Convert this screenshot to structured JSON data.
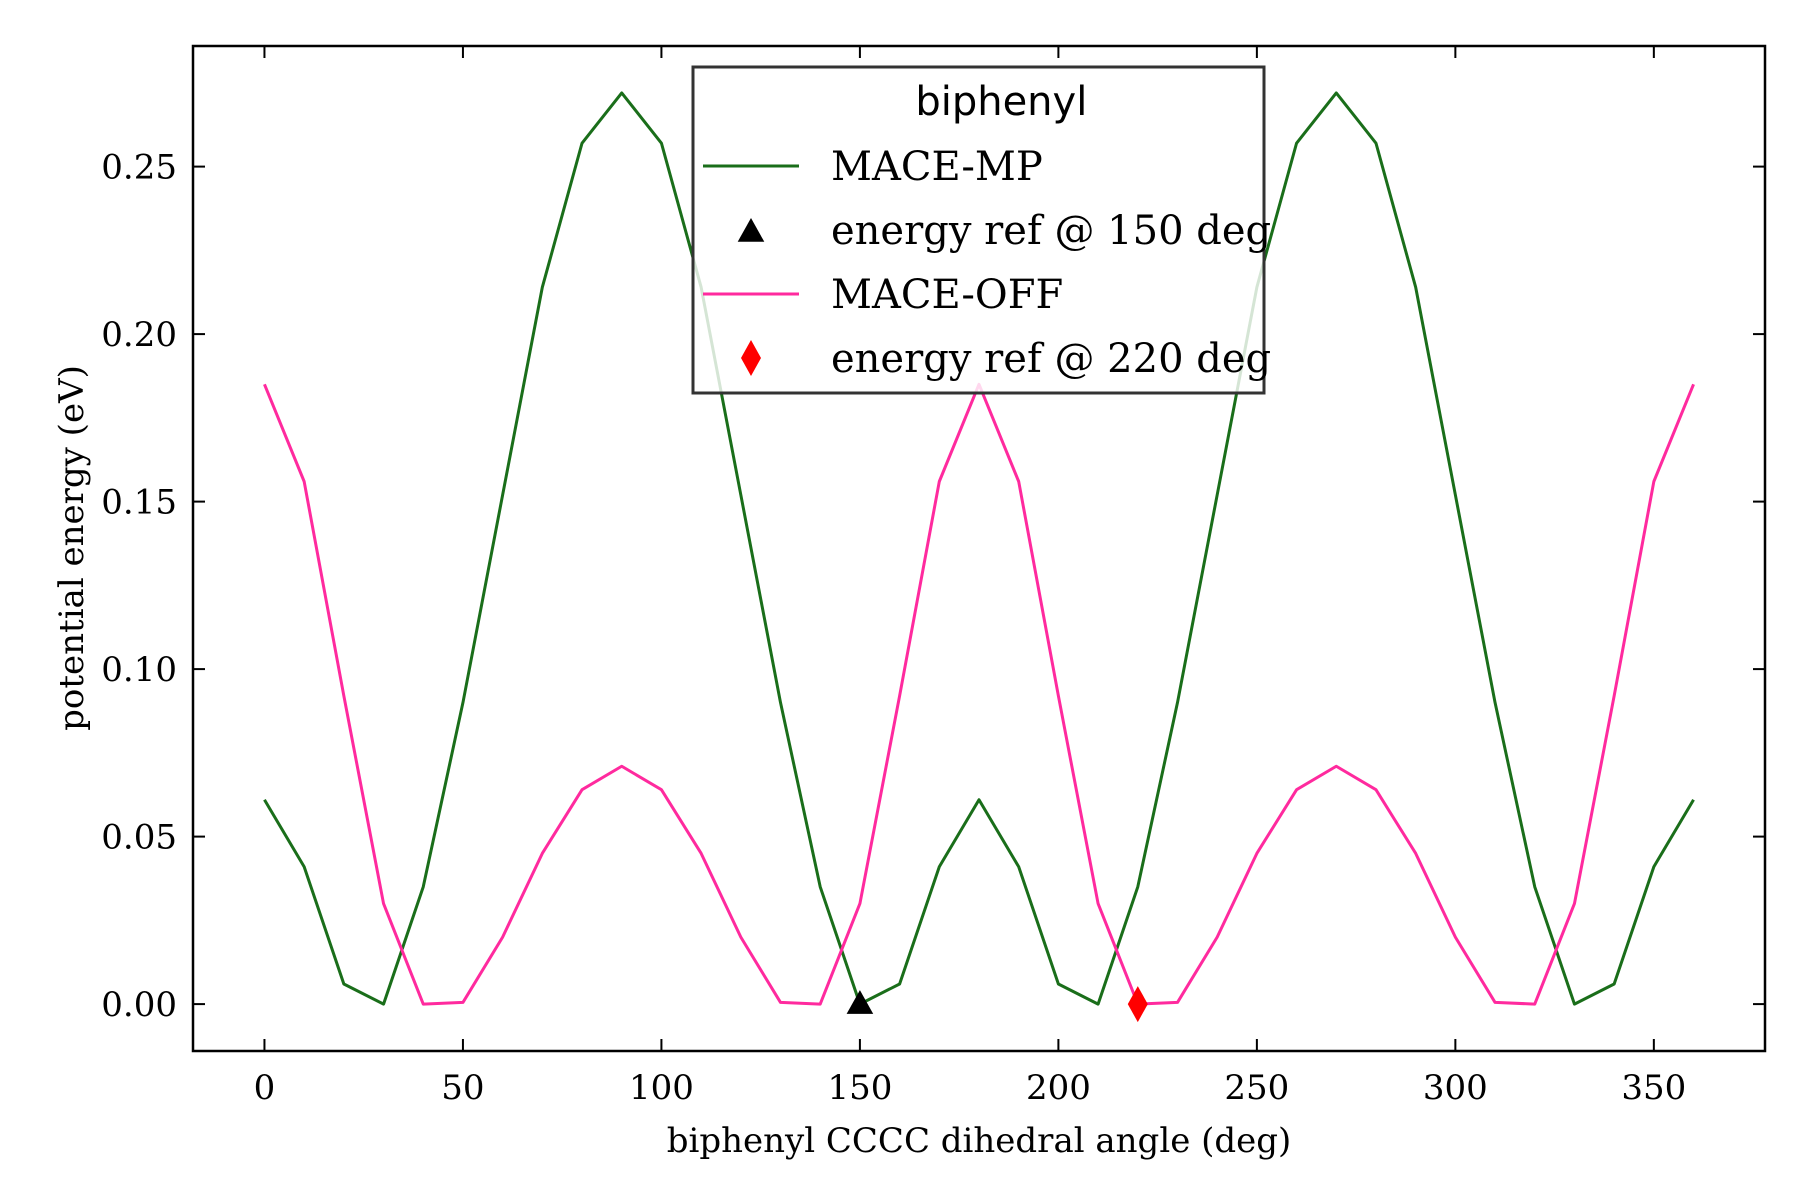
{
  "chart_data": {
    "type": "line",
    "xlabel": "biphenyl CCCC dihedral angle (deg)",
    "ylabel": "potential energy (eV)",
    "xlim": [
      -18,
      378
    ],
    "ylim": [
      -0.014,
      0.286
    ],
    "xticks": [
      0,
      50,
      100,
      150,
      200,
      250,
      300,
      350
    ],
    "yticks": [
      0.0,
      0.05,
      0.1,
      0.15,
      0.2,
      0.25
    ],
    "xtick_labels": [
      "0",
      "50",
      "100",
      "150",
      "200",
      "250",
      "300",
      "350"
    ],
    "ytick_labels": [
      "0.00",
      "0.05",
      "0.10",
      "0.15",
      "0.20",
      "0.25"
    ],
    "grid": false,
    "legend": {
      "title": "biphenyl",
      "placement": "top-center"
    },
    "x": [
      0,
      10,
      20,
      30,
      40,
      50,
      60,
      70,
      80,
      90,
      100,
      110,
      120,
      130,
      140,
      150,
      160,
      170,
      180,
      190,
      200,
      210,
      220,
      230,
      240,
      250,
      260,
      270,
      280,
      290,
      300,
      310,
      320,
      330,
      340,
      350,
      360
    ],
    "series": [
      {
        "name": "MACE-MP",
        "kind": "line",
        "color": "#1a6e1a",
        "values": [
          0.061,
          0.041,
          0.006,
          0.0,
          0.035,
          0.09,
          0.152,
          0.214,
          0.257,
          0.272,
          0.257,
          0.214,
          0.152,
          0.09,
          0.035,
          0.0,
          0.006,
          0.041,
          0.061,
          0.041,
          0.006,
          0.0,
          0.035,
          0.09,
          0.152,
          0.214,
          0.257,
          0.272,
          0.257,
          0.214,
          0.152,
          0.09,
          0.035,
          0.0,
          0.006,
          0.041,
          0.061
        ]
      },
      {
        "name": "energy ref @ 150 deg",
        "kind": "marker",
        "marker": "triangle",
        "color": "#000000",
        "points": [
          [
            150,
            0.0
          ]
        ]
      },
      {
        "name": "MACE-OFF",
        "kind": "line",
        "color": "#ff2a9e",
        "values": [
          0.185,
          0.156,
          0.092,
          0.03,
          0.0,
          0.0005,
          0.02,
          0.045,
          0.064,
          0.071,
          0.064,
          0.045,
          0.02,
          0.0005,
          0.0,
          0.03,
          0.092,
          0.156,
          0.185,
          0.156,
          0.092,
          0.03,
          0.0,
          0.0005,
          0.02,
          0.045,
          0.064,
          0.071,
          0.064,
          0.045,
          0.02,
          0.0005,
          0.0,
          0.03,
          0.092,
          0.156,
          0.185
        ]
      },
      {
        "name": "energy ref @ 220 deg",
        "kind": "marker",
        "marker": "diamond",
        "color": "#ff0000",
        "points": [
          [
            220,
            0.0
          ]
        ]
      }
    ]
  }
}
